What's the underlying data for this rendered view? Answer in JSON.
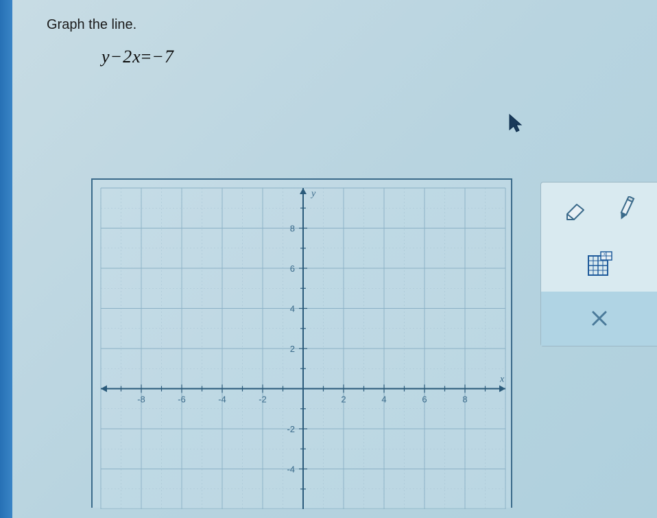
{
  "instruction": "Graph the line.",
  "equation": {
    "raw": "y-2x=-7",
    "lhs": "y−2x",
    "rhs": "−7"
  },
  "chart": {
    "type": "coordinate-grid",
    "x_axis_label": "x",
    "y_axis_label": "y",
    "xlim": [
      -10,
      10
    ],
    "ylim": [
      -6,
      10
    ],
    "xtick_step": 1,
    "ytick_step": 1,
    "xtick_labels": [
      -8,
      -6,
      -4,
      -2,
      2,
      4,
      6,
      8
    ],
    "ytick_labels_pos": [
      2,
      4,
      6,
      8
    ],
    "ytick_labels_neg": [
      -2,
      -4
    ],
    "major_step": 2,
    "grid_color": "#8ab0c5",
    "minor_grid_color": "#a8c5d5",
    "axis_color": "#2a5a7a",
    "tick_color": "#2a5a7a",
    "label_color": "#3a6a8a",
    "label_fontsize": 13,
    "background": "transparent",
    "border_color": "#3a6a8a"
  },
  "toolbar": {
    "eraser_label": "eraser",
    "pencil_label": "pencil",
    "grid_tool_label": "grid-zoom",
    "close_label": "×"
  },
  "colors": {
    "page_bg_top": "#c8dce4",
    "page_bg_bottom": "#afd0dd",
    "left_bar": "#2670b5",
    "toolbar_bg": "#d9eaf0",
    "toolbar_sel": "#b0d4e4",
    "close_color": "#4a7a9a"
  }
}
